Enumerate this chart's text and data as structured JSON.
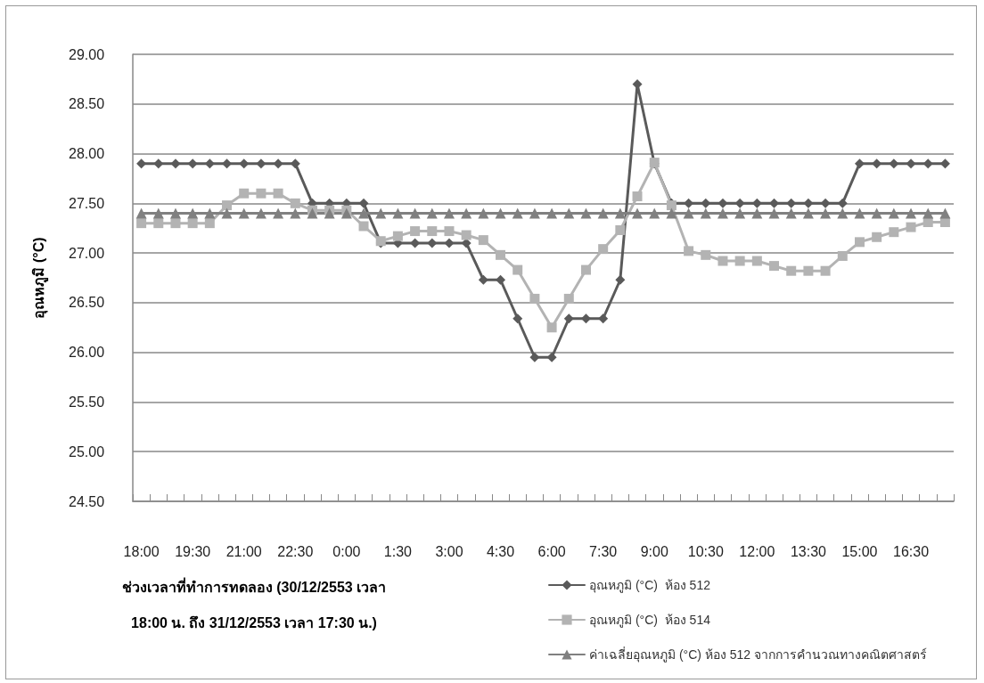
{
  "chart_data": {
    "type": "line",
    "xlabel": "ช่วงเวลาที่ทำการทดลอง (30/12/2553 เวลา 18:00 น. ถึง 31/12/2553 เวลา 17:30 น.)",
    "ylabel": "อุณหภูมิ (°C)",
    "categories": [
      "18:00",
      null,
      null,
      "19:30",
      null,
      null,
      "21:00",
      null,
      null,
      "22:30",
      null,
      null,
      "0:00",
      null,
      null,
      "1:30",
      null,
      null,
      "3:00",
      null,
      null,
      "4:30",
      null,
      null,
      "6:00",
      null,
      null,
      "7:30",
      null,
      null,
      "9:00",
      null,
      null,
      "10:30",
      null,
      null,
      "12:00",
      null,
      null,
      "13:30",
      null,
      null,
      "15:00",
      null,
      null,
      "16:30",
      null,
      null
    ],
    "series": [
      {
        "name": "อุณหภูมิ (°C)  ห้อง 512",
        "color": "#5a5a5a",
        "marker": "diamond",
        "values": [
          27.9,
          27.9,
          27.9,
          27.9,
          27.9,
          27.9,
          27.9,
          27.9,
          27.9,
          27.9,
          27.5,
          27.5,
          27.5,
          27.5,
          27.1,
          27.1,
          27.1,
          27.1,
          27.1,
          27.1,
          26.73,
          26.73,
          26.34,
          25.95,
          25.95,
          26.34,
          26.34,
          26.34,
          26.73,
          28.7,
          27.9,
          27.5,
          27.5,
          27.5,
          27.5,
          27.5,
          27.5,
          27.5,
          27.5,
          27.5,
          27.5,
          27.5,
          27.9,
          27.9,
          27.9,
          27.9,
          27.9,
          27.9
        ]
      },
      {
        "name": "อุณหภูมิ (°C)  ห้อง 514",
        "color": "#b3b3b3",
        "marker": "square",
        "values": [
          27.3,
          27.3,
          27.3,
          27.3,
          27.3,
          27.48,
          27.6,
          27.6,
          27.6,
          27.5,
          27.43,
          27.43,
          27.43,
          27.27,
          27.12,
          27.17,
          27.22,
          27.22,
          27.22,
          27.18,
          27.13,
          26.98,
          26.83,
          26.54,
          26.25,
          26.54,
          26.83,
          27.04,
          27.23,
          27.57,
          27.91,
          27.48,
          27.02,
          26.98,
          26.92,
          26.92,
          26.92,
          26.87,
          26.82,
          26.82,
          26.82,
          26.97,
          27.11,
          27.16,
          27.21,
          27.26,
          27.31,
          27.31
        ]
      },
      {
        "name": "ค่าเฉลี่ยอุณหภูมิ (°C) ห้อง 512 จากการคำนวณทางคณิตศาสตร์",
        "color": "#808080",
        "marker": "triangle",
        "values": [
          27.4,
          27.4,
          27.4,
          27.4,
          27.4,
          27.4,
          27.4,
          27.4,
          27.4,
          27.4,
          27.4,
          27.4,
          27.4,
          27.4,
          27.4,
          27.4,
          27.4,
          27.4,
          27.4,
          27.4,
          27.4,
          27.4,
          27.4,
          27.4,
          27.4,
          27.4,
          27.4,
          27.4,
          27.4,
          27.4,
          27.4,
          27.4,
          27.4,
          27.4,
          27.4,
          27.4,
          27.4,
          27.4,
          27.4,
          27.4,
          27.4,
          27.4,
          27.4,
          27.4,
          27.4,
          27.4,
          27.4,
          27.4
        ]
      }
    ],
    "ylim": [
      24.5,
      29
    ],
    "yticks": [
      {
        "value": 24.5,
        "label": "24.50"
      },
      {
        "value": 25,
        "label": "25.00"
      },
      {
        "value": 25.5,
        "label": "25.50"
      },
      {
        "value": 26,
        "label": "26.00"
      },
      {
        "value": 26.5,
        "label": "26.50"
      },
      {
        "value": 27,
        "label": "27.00"
      },
      {
        "value": 27.5,
        "label": "27.50"
      },
      {
        "value": 28,
        "label": "28.00"
      },
      {
        "value": 28.5,
        "label": "28.50"
      },
      {
        "value": 29,
        "label": "29.00"
      }
    ],
    "grid": "y",
    "legend": "bottom right",
    "line_style": "solid"
  }
}
